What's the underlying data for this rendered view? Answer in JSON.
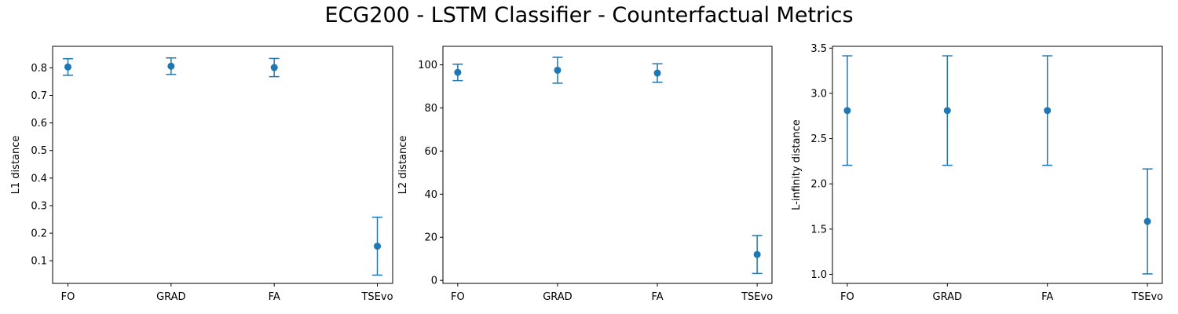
{
  "figure": {
    "title": "ECG200 - LSTM Classifier - Counterfactual Metrics"
  },
  "chart_data": [
    {
      "type": "scatter",
      "style": "errorbar",
      "color": "#1f77b4",
      "categories": [
        "FO",
        "GRAD",
        "FA",
        "TSEvo"
      ],
      "values": [
        0.803,
        0.806,
        0.801,
        0.153
      ],
      "errors": [
        0.03,
        0.03,
        0.033,
        0.105
      ],
      "ylabel": "L1 distance",
      "ylim": [
        0.018,
        0.878
      ],
      "yticks": [
        0.1,
        0.2,
        0.3,
        0.4,
        0.5,
        0.6,
        0.7,
        0.8
      ],
      "ytick_labels": [
        "0.1",
        "0.2",
        "0.3",
        "0.4",
        "0.5",
        "0.6",
        "0.7",
        "0.8"
      ]
    },
    {
      "type": "scatter",
      "style": "errorbar",
      "color": "#1f77b4",
      "categories": [
        "FO",
        "GRAD",
        "FA",
        "TSEvo"
      ],
      "values": [
        96.5,
        97.5,
        96.2,
        12.0
      ],
      "errors": [
        3.8,
        6.0,
        4.3,
        8.8
      ],
      "ylabel": "L2 distance",
      "ylim": [
        -1.4,
        108.6
      ],
      "yticks": [
        0,
        20,
        40,
        60,
        80,
        100
      ],
      "ytick_labels": [
        "0",
        "20",
        "40",
        "60",
        "80",
        "100"
      ]
    },
    {
      "type": "scatter",
      "style": "errorbar",
      "color": "#1f77b4",
      "categories": [
        "FO",
        "GRAD",
        "FA",
        "TSEvo"
      ],
      "values": [
        2.81,
        2.81,
        2.81,
        1.585
      ],
      "errors": [
        0.605,
        0.605,
        0.605,
        0.58
      ],
      "ylabel": "L-infinity distance",
      "ylim": [
        0.9,
        3.52
      ],
      "yticks": [
        1.0,
        1.5,
        2.0,
        2.5,
        3.0,
        3.5
      ],
      "ytick_labels": [
        "1.0",
        "1.5",
        "2.0",
        "2.5",
        "3.0",
        "3.5"
      ]
    }
  ]
}
